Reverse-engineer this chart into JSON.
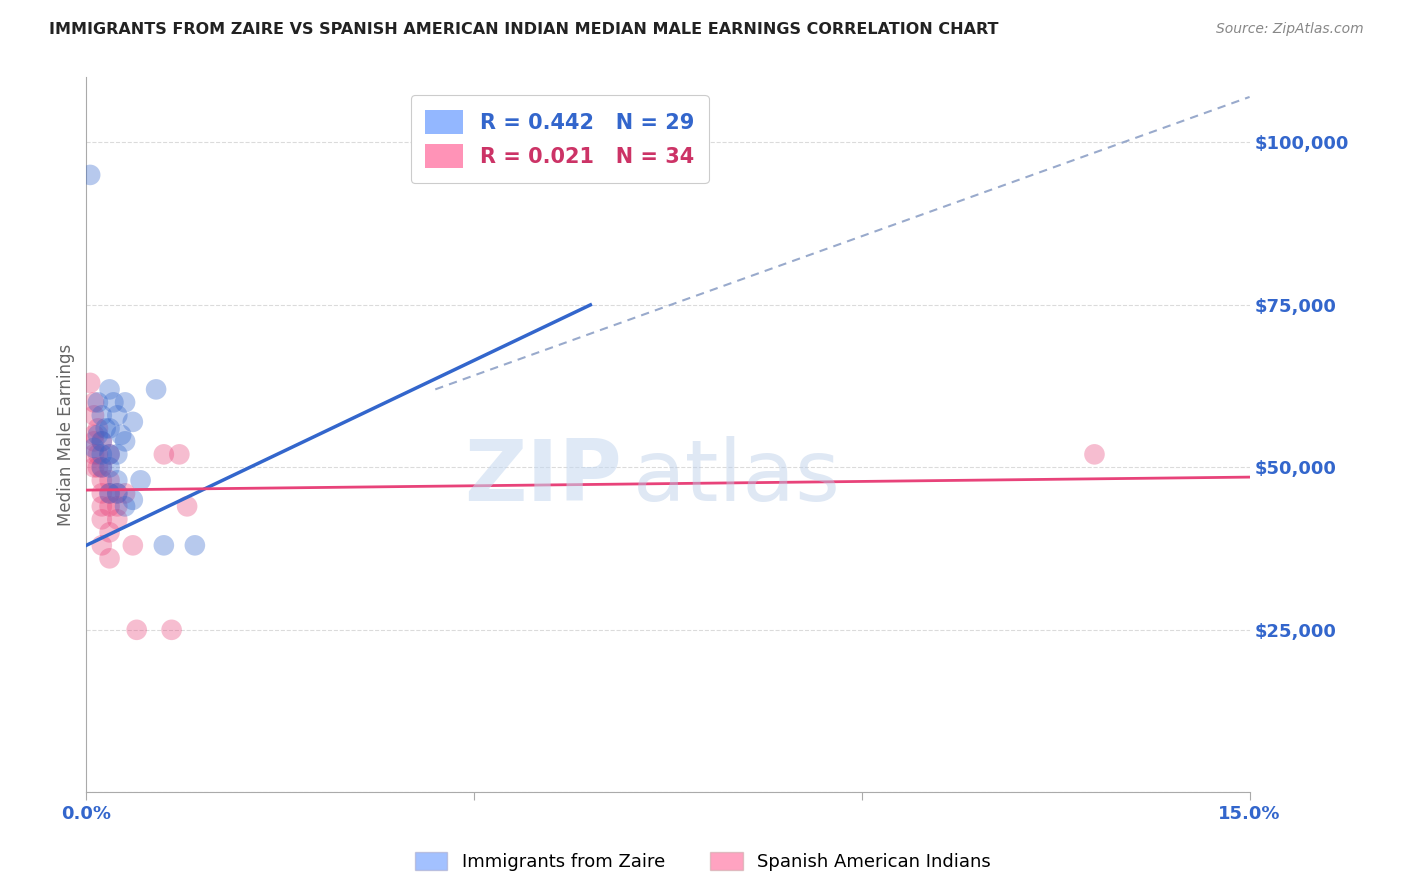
{
  "title": "IMMIGRANTS FROM ZAIRE VS SPANISH AMERICAN INDIAN MEDIAN MALE EARNINGS CORRELATION CHART",
  "source": "Source: ZipAtlas.com",
  "ylabel": "Median Male Earnings",
  "yticks": [
    0,
    25000,
    50000,
    75000,
    100000
  ],
  "ytick_labels": [
    "",
    "$25,000",
    "$50,000",
    "$75,000",
    "$100,000"
  ],
  "xlim": [
    0.0,
    0.15
  ],
  "ylim": [
    0,
    110000
  ],
  "legend": [
    {
      "label": "R = 0.442   N = 29",
      "color": "#6699ff"
    },
    {
      "label": "R = 0.021   N = 34",
      "color": "#ff6699"
    }
  ],
  "watermark_zip": "ZIP",
  "watermark_atlas": "atlas",
  "blue_scatter": [
    [
      0.0005,
      95000
    ],
    [
      0.001,
      53000
    ],
    [
      0.0015,
      60000
    ],
    [
      0.0015,
      55000
    ],
    [
      0.002,
      58000
    ],
    [
      0.002,
      54000
    ],
    [
      0.002,
      52000
    ],
    [
      0.002,
      50000
    ],
    [
      0.0025,
      56000
    ],
    [
      0.003,
      62000
    ],
    [
      0.003,
      56000
    ],
    [
      0.003,
      52000
    ],
    [
      0.003,
      50000
    ],
    [
      0.003,
      46000
    ],
    [
      0.0035,
      60000
    ],
    [
      0.004,
      58000
    ],
    [
      0.004,
      52000
    ],
    [
      0.004,
      48000
    ],
    [
      0.004,
      46000
    ],
    [
      0.0045,
      55000
    ],
    [
      0.005,
      60000
    ],
    [
      0.005,
      54000
    ],
    [
      0.005,
      44000
    ],
    [
      0.006,
      57000
    ],
    [
      0.006,
      45000
    ],
    [
      0.007,
      48000
    ],
    [
      0.009,
      62000
    ],
    [
      0.01,
      38000
    ],
    [
      0.014,
      38000
    ]
  ],
  "pink_scatter": [
    [
      0.0005,
      63000
    ],
    [
      0.001,
      60000
    ],
    [
      0.001,
      58000
    ],
    [
      0.001,
      55000
    ],
    [
      0.001,
      54000
    ],
    [
      0.001,
      52000
    ],
    [
      0.001,
      50000
    ],
    [
      0.0015,
      56000
    ],
    [
      0.0015,
      52000
    ],
    [
      0.0015,
      50000
    ],
    [
      0.002,
      54000
    ],
    [
      0.002,
      50000
    ],
    [
      0.002,
      48000
    ],
    [
      0.002,
      46000
    ],
    [
      0.002,
      44000
    ],
    [
      0.002,
      42000
    ],
    [
      0.002,
      38000
    ],
    [
      0.003,
      52000
    ],
    [
      0.003,
      48000
    ],
    [
      0.003,
      46000
    ],
    [
      0.003,
      44000
    ],
    [
      0.003,
      40000
    ],
    [
      0.003,
      36000
    ],
    [
      0.004,
      46000
    ],
    [
      0.004,
      44000
    ],
    [
      0.004,
      42000
    ],
    [
      0.005,
      46000
    ],
    [
      0.006,
      38000
    ],
    [
      0.0065,
      25000
    ],
    [
      0.01,
      52000
    ],
    [
      0.011,
      25000
    ],
    [
      0.012,
      52000
    ],
    [
      0.013,
      44000
    ],
    [
      0.13,
      52000
    ]
  ],
  "blue_line_x": [
    0.0,
    0.065
  ],
  "blue_line_y": [
    38000,
    75000
  ],
  "pink_line_x": [
    0.0,
    0.15
  ],
  "pink_line_y": [
    46500,
    48500
  ],
  "dash_line_x": [
    0.045,
    0.15
  ],
  "dash_line_y": [
    62000,
    107000
  ],
  "blue_line_color": "#3366cc",
  "pink_line_color": "#e8437a",
  "dashed_line_color": "#99aacc",
  "axis_label_color": "#3366cc",
  "background_color": "#ffffff",
  "grid_color": "#cccccc"
}
